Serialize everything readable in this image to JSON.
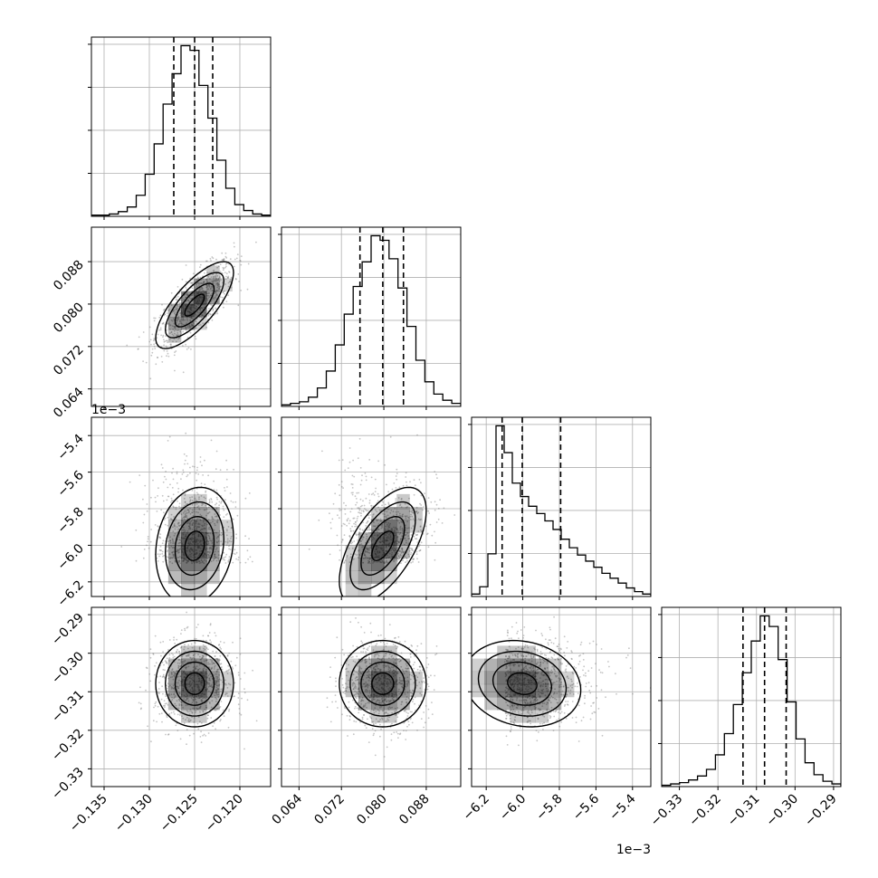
{
  "chart_data": {
    "type": "corner",
    "title": "",
    "grid": true,
    "parameters": [
      {
        "ticks": [
          -0.135,
          -0.13,
          -0.125,
          -0.12
        ],
        "tick_labels": [
          "−0.135",
          "−0.130",
          "−0.125",
          "−0.120"
        ],
        "range": [
          -0.1364,
          -0.1166
        ],
        "quantiles": [
          -0.1273,
          -0.125,
          -0.123
        ],
        "hist": [
          1,
          1,
          2,
          4,
          8,
          18,
          36,
          62,
          96,
          122,
          146,
          142,
          112,
          84,
          48,
          24,
          10,
          5,
          2,
          1
        ]
      },
      {
        "ticks": [
          0.064,
          0.072,
          0.08,
          0.088
        ],
        "tick_labels": [
          "0.064",
          "0.072",
          "0.080",
          "0.088"
        ],
        "range": [
          0.0607,
          0.0945
        ],
        "quantiles": [
          0.0755,
          0.0798,
          0.0837
        ],
        "hist": [
          1,
          2,
          3,
          6,
          12,
          23,
          40,
          60,
          78,
          94,
          111,
          108,
          96,
          77,
          52,
          30,
          16,
          8,
          4,
          2
        ]
      },
      {
        "ticks": [
          -6.2,
          -6.0,
          -5.8,
          -5.6,
          -5.4
        ],
        "tick_labels": [
          "−6.2",
          "−6.0",
          "−5.8",
          "−5.6",
          "−5.4"
        ],
        "offset_text": "1e−3",
        "range": [
          -6.28,
          -5.3
        ],
        "quantiles": [
          -6.113,
          -6.003,
          -5.793
        ],
        "hist": [
          2,
          8,
          35,
          140,
          118,
          93,
          82,
          74,
          68,
          62,
          55,
          47,
          40,
          34,
          29,
          24,
          19,
          15,
          11,
          7,
          4,
          2
        ]
      },
      {
        "ticks": [
          -0.33,
          -0.32,
          -0.31,
          -0.3,
          -0.29
        ],
        "tick_labels": [
          "−0.33",
          "−0.32",
          "−0.31",
          "−0.30",
          "−0.29"
        ],
        "range": [
          -0.3346,
          -0.2881
        ],
        "quantiles": [
          -0.3135,
          -0.3079,
          -0.3023
        ],
        "hist": [
          1,
          2,
          3,
          5,
          8,
          13,
          24,
          40,
          62,
          86,
          110,
          129,
          121,
          96,
          64,
          36,
          18,
          9,
          4,
          2
        ]
      }
    ],
    "correlations": [
      [
        1,
        0.75,
        0.15,
        0.0
      ],
      [
        0.75,
        1,
        0.6,
        0.0
      ],
      [
        0.15,
        0.6,
        1,
        -0.15
      ],
      [
        0.0,
        0.0,
        -0.15,
        1
      ]
    ],
    "contour_levels": [
      0.5,
      1.0,
      1.5,
      2.0
    ],
    "color": "#000000",
    "point_color": "#7f7f7f",
    "grid_color": "#b0b0b0"
  }
}
